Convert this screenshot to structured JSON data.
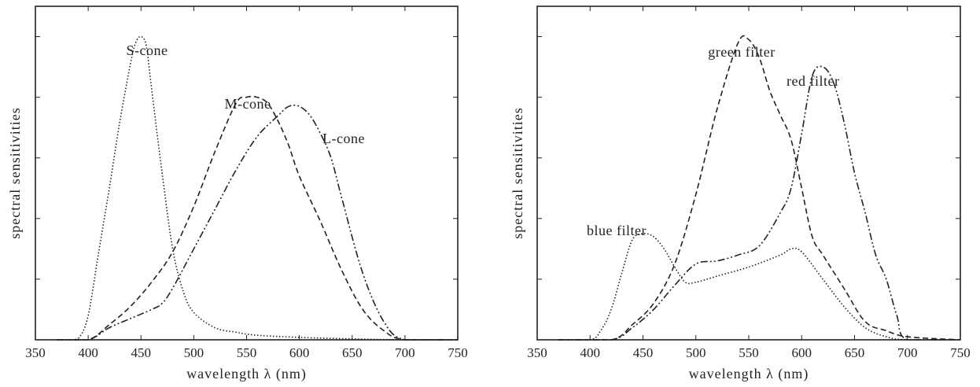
{
  "chart_data": [
    {
      "type": "line",
      "xlabel": "wavelength λ (nm)",
      "ylabel": "spectral sensitivities",
      "xlim": [
        350,
        750
      ],
      "ylim": [
        0,
        1.1
      ],
      "xticks": [
        350,
        400,
        450,
        500,
        550,
        600,
        650,
        700,
        750
      ],
      "yticks": [
        0.2,
        0.4,
        0.6,
        0.8,
        1.0
      ],
      "yticklabels": false,
      "grid": false,
      "legend": "none",
      "series": [
        {
          "name": "S-cone",
          "dash": "dotted",
          "x": [
            370,
            385,
            392,
            400,
            410,
            420,
            430,
            440,
            445,
            450,
            455,
            460,
            470,
            480,
            490,
            500,
            520,
            540,
            560,
            600,
            650,
            700,
            750
          ],
          "y": [
            0.0,
            0.0,
            0.01,
            0.08,
            0.29,
            0.5,
            0.72,
            0.91,
            0.98,
            1.0,
            0.97,
            0.83,
            0.55,
            0.3,
            0.16,
            0.09,
            0.04,
            0.025,
            0.015,
            0.008,
            0.003,
            0.0,
            0.0
          ]
        },
        {
          "name": "M-cone",
          "dash": "dashed",
          "x": [
            370,
            400,
            420,
            440,
            460,
            480,
            500,
            520,
            540,
            550,
            560,
            570,
            580,
            590,
            600,
            620,
            640,
            660,
            680,
            700,
            750
          ],
          "y": [
            0.0,
            0.0,
            0.05,
            0.11,
            0.19,
            0.29,
            0.44,
            0.62,
            0.78,
            0.8,
            0.8,
            0.78,
            0.72,
            0.64,
            0.54,
            0.39,
            0.23,
            0.1,
            0.03,
            0.0,
            0.0
          ]
        },
        {
          "name": "L-cone",
          "dash": "dashdot",
          "x": [
            370,
            400,
            420,
            440,
            460,
            470,
            480,
            500,
            520,
            540,
            560,
            580,
            590,
            600,
            610,
            620,
            630,
            640,
            660,
            680,
            700,
            750
          ],
          "y": [
            0.0,
            0.0,
            0.04,
            0.07,
            0.1,
            0.12,
            0.17,
            0.3,
            0.43,
            0.56,
            0.67,
            0.74,
            0.77,
            0.77,
            0.74,
            0.68,
            0.6,
            0.47,
            0.22,
            0.06,
            0.0,
            0.0
          ]
        }
      ],
      "annotations": [
        "S-cone",
        "M-cone",
        "L-cone"
      ]
    },
    {
      "type": "line",
      "xlabel": "wavelength λ (nm)",
      "ylabel": "spectral sensitivities",
      "xlim": [
        350,
        750
      ],
      "ylim": [
        0,
        1.1
      ],
      "xticks": [
        350,
        400,
        450,
        500,
        550,
        600,
        650,
        700,
        750
      ],
      "yticks": [
        0.2,
        0.4,
        0.6,
        0.8,
        1.0
      ],
      "yticklabels": false,
      "grid": false,
      "legend": "none",
      "series": [
        {
          "name": "blue filter",
          "dash": "dotted",
          "x": [
            370,
            400,
            410,
            420,
            430,
            440,
            450,
            460,
            470,
            480,
            490,
            500,
            520,
            550,
            580,
            590,
            600,
            620,
            640,
            660,
            680,
            700,
            750
          ],
          "y": [
            0.0,
            0.0,
            0.03,
            0.1,
            0.22,
            0.33,
            0.35,
            0.34,
            0.3,
            0.24,
            0.19,
            0.19,
            0.21,
            0.24,
            0.28,
            0.3,
            0.29,
            0.2,
            0.11,
            0.04,
            0.01,
            0.0,
            0.0
          ]
        },
        {
          "name": "green filter",
          "dash": "dashed",
          "x": [
            370,
            420,
            440,
            460,
            480,
            500,
            520,
            540,
            550,
            560,
            570,
            580,
            590,
            600,
            610,
            620,
            640,
            660,
            680,
            700,
            750
          ],
          "y": [
            0.0,
            0.0,
            0.05,
            0.12,
            0.25,
            0.48,
            0.76,
            0.98,
            0.99,
            0.93,
            0.82,
            0.74,
            0.66,
            0.5,
            0.34,
            0.28,
            0.17,
            0.06,
            0.03,
            0.01,
            0.0
          ]
        },
        {
          "name": "red filter",
          "dash": "dashdot",
          "x": [
            370,
            420,
            440,
            460,
            480,
            500,
            520,
            540,
            560,
            580,
            590,
            600,
            610,
            620,
            630,
            640,
            650,
            660,
            670,
            680,
            690,
            700,
            750
          ],
          "y": [
            0.0,
            0.0,
            0.04,
            0.1,
            0.18,
            0.25,
            0.26,
            0.28,
            0.31,
            0.42,
            0.5,
            0.68,
            0.87,
            0.9,
            0.85,
            0.72,
            0.55,
            0.42,
            0.28,
            0.2,
            0.08,
            0.0,
            0.0
          ]
        }
      ],
      "annotations": [
        "blue filter",
        "green filter",
        "red filter"
      ]
    }
  ]
}
